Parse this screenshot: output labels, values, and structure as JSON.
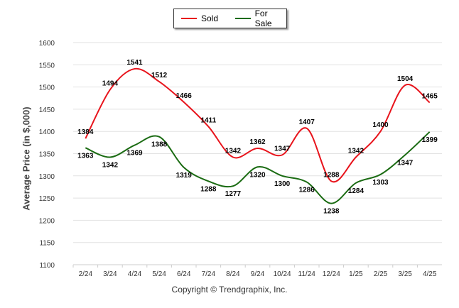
{
  "legend": {
    "sold_label": "Sold",
    "forsale_label": "For Sale"
  },
  "copyright": "Copyright © Trendgraphix, Inc.",
  "chart_data": {
    "type": "line",
    "ylabel": "Average Price (in $,000)",
    "xlabel": "",
    "ylim": [
      1100,
      1600
    ],
    "yticks": [
      1100,
      1150,
      1200,
      1250,
      1300,
      1350,
      1400,
      1450,
      1500,
      1550,
      1600
    ],
    "categories": [
      "2/24",
      "3/24",
      "4/24",
      "5/24",
      "6/24",
      "7/24",
      "8/24",
      "9/24",
      "10/24",
      "11/24",
      "12/24",
      "1/25",
      "2/25",
      "3/25",
      "4/25"
    ],
    "grid": true,
    "legend_position": "top-center",
    "series": [
      {
        "name": "Sold",
        "color": "#e8141c",
        "values": [
          1384,
          1494,
          1541,
          1512,
          1466,
          1411,
          1342,
          1362,
          1347,
          1407,
          1288,
          1342,
          1400,
          1504,
          1465
        ]
      },
      {
        "name": "For Sale",
        "color": "#1a6b12",
        "values": [
          1363,
          1342,
          1369,
          1388,
          1319,
          1288,
          1277,
          1320,
          1300,
          1286,
          1238,
          1284,
          1303,
          1347,
          1399
        ]
      }
    ]
  }
}
